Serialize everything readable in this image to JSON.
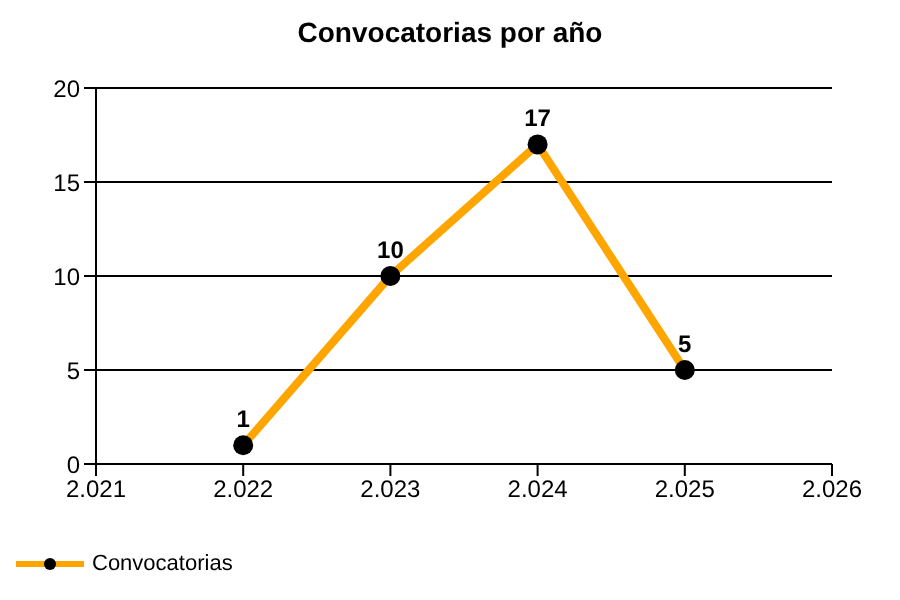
{
  "chart_data": {
    "type": "line",
    "title": "Convocatorias por año",
    "x": [
      2022,
      2023,
      2024,
      2025
    ],
    "series": [
      {
        "name": "Convocatorias",
        "color": "#ffa500",
        "values": [
          1,
          10,
          17,
          5
        ]
      }
    ],
    "xlim": [
      2021,
      2026
    ],
    "xticks": [
      {
        "value": 2021,
        "label": "2.021"
      },
      {
        "value": 2022,
        "label": "2.022"
      },
      {
        "value": 2023,
        "label": "2.023"
      },
      {
        "value": 2024,
        "label": "2.024"
      },
      {
        "value": 2025,
        "label": "2.025"
      },
      {
        "value": 2026,
        "label": "2.026"
      }
    ],
    "ylim": [
      0,
      20
    ],
    "yticks": [
      0,
      5,
      10,
      15,
      20
    ],
    "grid": "y",
    "legend": "bottom left",
    "marker": "circle",
    "line_style": "solid",
    "data_labels": true
  }
}
